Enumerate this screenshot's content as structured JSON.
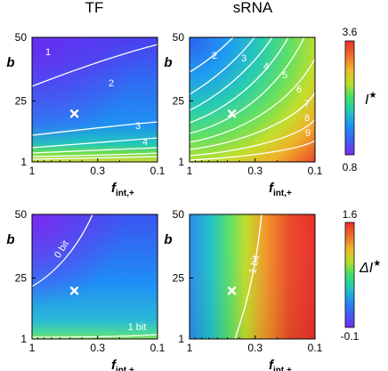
{
  "column_titles": [
    "TF",
    "sRNA"
  ],
  "y_axis_label": "b",
  "x_axis_label_main": "f",
  "x_axis_label_sub": "int,+",
  "x_ticks": [
    "1",
    "0.3",
    "0.1"
  ],
  "y_ticks": [
    "50",
    "25",
    "1"
  ],
  "colorbars": [
    {
      "name": "I*",
      "label_main": "I",
      "label_sup": "★",
      "max_label": "3.6",
      "min_label": "0.8"
    },
    {
      "name": "ΔI*",
      "label_main": "ΔI",
      "label_sup": "★",
      "max_label": "1.6",
      "min_label": "-0.1"
    }
  ],
  "colormap": [
    "#7b2cf0",
    "#3f5ff0",
    "#1f8ef5",
    "#22c7c0",
    "#3ee06a",
    "#b5e02a",
    "#f0b52a",
    "#f06a28",
    "#e8322a"
  ],
  "chart_data": [
    {
      "type": "heatmap",
      "panel": "TF I*",
      "title": "TF",
      "xlabel": "f_int,+",
      "ylabel": "b",
      "x_scale": "log",
      "xlim": [
        1,
        0.1
      ],
      "ylim": [
        1,
        50
      ],
      "marker": {
        "x": 0.46,
        "y": 20
      },
      "contour_labels": [
        "1",
        "2",
        "3",
        "4"
      ]
    },
    {
      "type": "heatmap",
      "panel": "sRNA I*",
      "title": "sRNA",
      "xlabel": "f_int,+",
      "ylabel": "b",
      "x_scale": "log",
      "xlim": [
        1,
        0.1
      ],
      "ylim": [
        1,
        50
      ],
      "marker": {
        "x": 0.46,
        "y": 20
      },
      "contour_labels": [
        "2",
        "3",
        "4",
        "5",
        "6",
        "7",
        "8",
        "9"
      ]
    },
    {
      "type": "heatmap",
      "panel": "TF ΔI*",
      "xlabel": "f_int,+",
      "ylabel": "b",
      "x_scale": "log",
      "xlim": [
        1,
        0.1
      ],
      "ylim": [
        1,
        50
      ],
      "marker": {
        "x": 0.46,
        "y": 20
      },
      "contour_labels": [
        "0 bit",
        "1 bit"
      ]
    },
    {
      "type": "heatmap",
      "panel": "sRNA ΔI*",
      "xlabel": "f_int,+",
      "ylabel": "b",
      "x_scale": "log",
      "xlim": [
        1,
        0.1
      ],
      "ylim": [
        1,
        50
      ],
      "marker": {
        "x": 0.46,
        "y": 20
      },
      "contour_labels": [
        "1 bit"
      ]
    }
  ]
}
